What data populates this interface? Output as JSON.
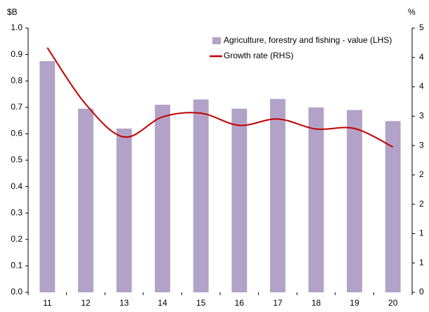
{
  "chart_data": {
    "type": "bar_line",
    "y_label": "$B",
    "y2_label": "%",
    "categories": [
      "11",
      "12",
      "13",
      "14",
      "15",
      "16",
      "17",
      "18",
      "19",
      "20"
    ],
    "series": [
      {
        "name": "Agriculture, forestry and fishing - value (LHS)",
        "color": "#b3a2c7",
        "type": "bar",
        "values": [
          0.875,
          0.695,
          0.62,
          0.71,
          0.73,
          0.695,
          0.732,
          0.7,
          0.69,
          0.648
        ]
      },
      {
        "name": "Growth rate (RHS)",
        "color": "#c00000",
        "type": "line",
        "axis": "y2",
        "values": [
          4.63,
          3.56,
          2.94,
          3.32,
          3.39,
          3.16,
          3.28,
          3.09,
          3.1,
          2.75
        ]
      }
    ],
    "ylim": [
      0,
      1.0
    ],
    "yticks": [
      {
        "value": 0,
        "label": "0.0"
      },
      0.1,
      0.2,
      0.3,
      0.4,
      0.5,
      0.6,
      0.7,
      0.8,
      0.9,
      {
        "value": 1.0,
        "label": "1.0"
      }
    ],
    "y2lim": [
      0,
      5
    ],
    "y2ticks": [
      0,
      {
        "value": 0.556,
        "label": "1"
      },
      {
        "value": 1.111,
        "label": "1"
      },
      {
        "value": 1.667,
        "label": "2"
      },
      {
        "value": 2.222,
        "label": "2"
      },
      {
        "value": 2.778,
        "label": "3"
      },
      {
        "value": 3.333,
        "label": "3"
      },
      {
        "value": 3.889,
        "label": "4"
      },
      {
        "value": 4.444,
        "label": "4"
      },
      5
    ],
    "legend": "top-right"
  }
}
